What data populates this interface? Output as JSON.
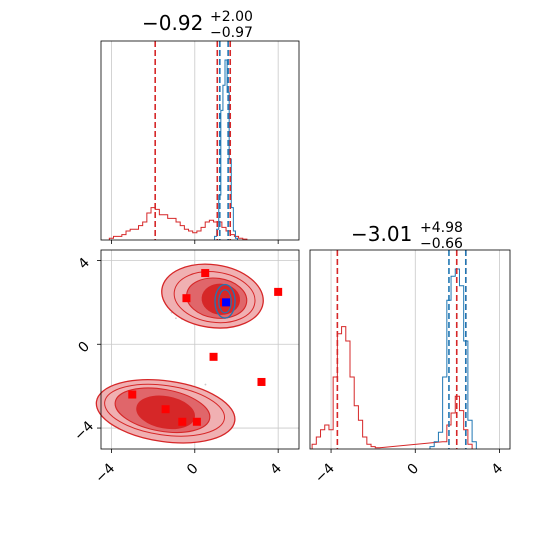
{
  "colors": {
    "red": "#d62728",
    "blue": "#1f77b4",
    "red_fill_dark": "#d62728",
    "red_fill_mid": "#e0666a",
    "red_fill_light": "#f0b0b2",
    "marker_blue": "#0000ff",
    "marker_red": "#ff0000",
    "grid": "#c8c8c8",
    "scatter": "#cccccc"
  },
  "chart_data": {
    "type": "corner",
    "parameters": [
      {
        "title": {
          "value": "−0.92",
          "sup": "+2.00",
          "sub": "−0.97"
        },
        "range": [
          -4.5,
          5.0
        ],
        "ticks": [
          -4,
          0,
          4
        ],
        "tick_labels": [
          "−4",
          "0",
          "4"
        ],
        "hist_red": {
          "bins": [
            [
              -4.0,
              0.01
            ],
            [
              -3.8,
              0.02
            ],
            [
              -3.6,
              0.02
            ],
            [
              -3.4,
              0.03
            ],
            [
              -3.2,
              0.05
            ],
            [
              -3.0,
              0.06
            ],
            [
              -2.8,
              0.06
            ],
            [
              -2.6,
              0.08
            ],
            [
              -2.4,
              0.1
            ],
            [
              -2.2,
              0.15
            ],
            [
              -2.0,
              0.18
            ],
            [
              -1.8,
              0.17
            ],
            [
              -1.6,
              0.14
            ],
            [
              -1.4,
              0.14
            ],
            [
              -1.2,
              0.12
            ],
            [
              -1.0,
              0.12
            ],
            [
              -0.8,
              0.1
            ],
            [
              -0.6,
              0.08
            ],
            [
              -0.4,
              0.06
            ],
            [
              -0.2,
              0.05
            ],
            [
              0.0,
              0.04
            ],
            [
              0.2,
              0.05
            ],
            [
              0.4,
              0.07
            ],
            [
              0.6,
              0.1
            ],
            [
              0.8,
              0.11
            ],
            [
              1.0,
              0.1
            ],
            [
              1.2,
              0.1
            ],
            [
              1.4,
              0.07
            ],
            [
              1.6,
              0.05
            ],
            [
              1.8,
              0.03
            ],
            [
              2.0,
              0.02
            ],
            [
              2.2,
              0.01
            ],
            [
              2.4,
              0.005
            ]
          ],
          "lines": [
            -1.9,
            1.08,
            1.7
          ]
        },
        "hist_blue": {
          "bins": [
            [
              1.0,
              0.02
            ],
            [
              1.1,
              0.06
            ],
            [
              1.2,
              0.25
            ],
            [
              1.3,
              0.72
            ],
            [
              1.4,
              0.86
            ],
            [
              1.5,
              1.0
            ],
            [
              1.6,
              0.82
            ],
            [
              1.7,
              0.45
            ],
            [
              1.8,
              0.18
            ],
            [
              1.9,
              0.05
            ],
            [
              2.0,
              0.01
            ]
          ],
          "lines": [
            1.2,
            1.6
          ]
        }
      },
      {
        "title": {
          "value": "−3.01",
          "sup": "+4.98",
          "sub": "−0.66"
        },
        "range": [
          -5.0,
          4.5
        ],
        "ticks": [
          -4,
          0,
          4
        ],
        "tick_labels": [
          "−4",
          "0",
          "4"
        ],
        "hist_red": {
          "bins": [
            [
              -4.8,
              0.02
            ],
            [
              -4.6,
              0.05
            ],
            [
              -4.4,
              0.08
            ],
            [
              -4.2,
              0.1
            ],
            [
              -4.0,
              0.08
            ],
            [
              -3.8,
              0.3
            ],
            [
              -3.6,
              0.48
            ],
            [
              -3.4,
              0.51
            ],
            [
              -3.2,
              0.45
            ],
            [
              -3.0,
              0.3
            ],
            [
              -2.8,
              0.18
            ],
            [
              -2.6,
              0.12
            ],
            [
              -2.4,
              0.05
            ],
            [
              -2.2,
              0.02
            ],
            [
              -2.0,
              0.01
            ],
            [
              -1.8,
              0.005
            ],
            [
              1.4,
              0.03
            ],
            [
              1.6,
              0.1
            ],
            [
              1.8,
              0.15
            ],
            [
              2.0,
              0.22
            ],
            [
              2.2,
              0.16
            ],
            [
              2.4,
              0.08
            ],
            [
              2.6,
              0.02
            ]
          ],
          "lines": [
            -3.7,
            1.97,
            2.4
          ]
        },
        "hist_blue": {
          "bins": [
            [
              0.8,
              0.01
            ],
            [
              1.0,
              0.03
            ],
            [
              1.2,
              0.07
            ],
            [
              1.4,
              0.3
            ],
            [
              1.6,
              0.62
            ],
            [
              1.8,
              0.72
            ],
            [
              2.0,
              0.75
            ],
            [
              2.2,
              0.68
            ],
            [
              2.4,
              0.45
            ],
            [
              2.6,
              0.12
            ],
            [
              2.8,
              0.03
            ]
          ],
          "lines": [
            1.6,
            2.4
          ]
        }
      }
    ],
    "markers_red": [
      [
        0.5,
        3.4
      ],
      [
        -0.4,
        2.2
      ],
      [
        1.4,
        2.0
      ],
      [
        4.0,
        2.5
      ],
      [
        0.9,
        -0.6
      ],
      [
        3.2,
        -1.8
      ],
      [
        -3.0,
        -2.4
      ],
      [
        -1.4,
        -3.1
      ],
      [
        -0.6,
        -3.7
      ],
      [
        0.1,
        -3.7
      ]
    ],
    "markers_blue": [
      [
        1.5,
        2.0
      ]
    ]
  }
}
